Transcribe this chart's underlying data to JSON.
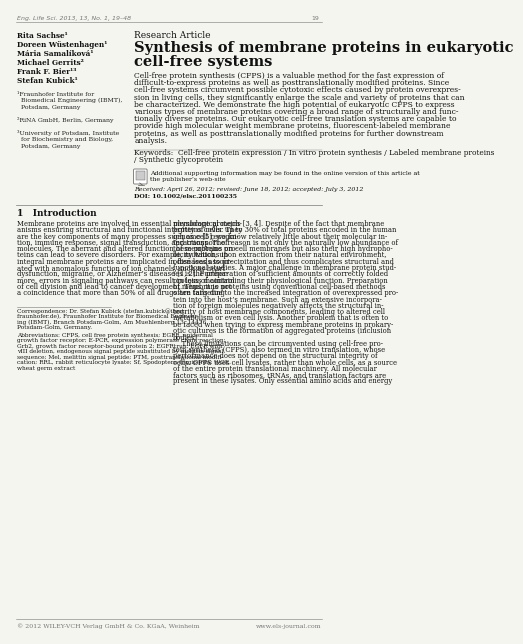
{
  "bg_color": "#f5f5f0",
  "header_line": "Eng. Life Sci. 2013, 13, No. 1, 19–48",
  "page_number": "19",
  "journal": "Eng. Life Sci.",
  "authors_left": [
    "Rita Sachse¹",
    "Doreen Wüstenhagen¹",
    "Mária Samalíková¹",
    "Michael Gerrits²",
    "Frank F. Bier¹³",
    "Stefan Kubick¹"
  ],
  "affiliations": [
    "¹Fraunhofer Institute for",
    "  Biomedical Engineering (IBMT),",
    "  Potsdam, Germany",
    "",
    "²RiNA GmbH, Berlin, Germany",
    "",
    "³University of Potsdam, Institute",
    "  for Biochemistry and Biology,",
    "  Potsdam, Germany"
  ],
  "research_article_label": "Research Article",
  "title_line1": "Synthesis of membrane proteins in eukaryotic",
  "title_line2": "cell-free systems",
  "abstract_text": "Cell-free protein synthesis (CFPS) is a valuable method for the fast expression of\ndifficult-to-express proteins as well as posttranslationally modified proteins. Since\ncell-free systems circumvent possible cytotoxic effects caused by protein overexpres-\nsion in living cells, they significantly enlarge the scale and variety of proteins that can\nbe characterized. We demonstrate the high potential of eukaryotic CFPS to express\nvarious types of membrane proteins covering a broad range of structurally and func-\ntionally diverse proteins. Our eukaryotic cell-free translation systems are capable to\nprovide high molecular weight membrane proteins, fluorescent-labeled membrane\nproteins, as well as posttranslationally modified proteins for further downstream\nanalysis.",
  "keywords_label": "Keywords:",
  "keywords_text": "Cell-free protein expression / In vitro protein synthesis / Labeled membrane proteins\n/ Synthetic glycoprotein",
  "supporting_text": "Additional supporting information may be found in the online version of this article at\nthe publisher’s web-site",
  "received_text": "Received: April 26, 2012; revised: June 18, 2012; accepted: July 3, 2012",
  "doi_text": "DOI: 10.1002/elsc.201100235",
  "section1_title": "1   Introduction",
  "intro_col1": "Membrane proteins are involved in essential physiological mech-\nanisms ensuring structural and functional integrity of cells. They\nare the key components of many processes such as cell recogni-\ntion, immune response, signal transduction, and transport of\nmolecules. The aberrant and altered function of membrane pro-\nteins can lead to severe disorders. For example, mutations in\nintegral membrane proteins are implicated in diseases associ-\nated with anomalous function of ion channels, such as heart\ndysfunction, migraine, or Alzheimer’s disease [1, 2]. Further-\nmore, errors in signaling pathways can result in loss of control\nof cell division and lead to cancer development. Thus, it is not\na coincidence that more than 50% of all drugs are targeting",
  "intro_col2": "membrane proteins [3, 4]. Despite of the fact that membrane\nproteins cover up to 30% of total proteins encoded in the human\ngenome [5], we know relatively little about their molecular in-\nteractions. The reason is not only the naturally low abundance of\nthese proteins on cell membranes but also their high hydropho-\nbicity which, upon extraction from their natural environment,\noften leads to precipitation and thus complicates structural and\nfunctional studies. A major challenge in membrane protein stud-\nies is the preparation of sufficient amounts of correctly folded\nproteins maintaining their physiological function. Preparation\nof membrane proteins using conventional cell-based methods\noften fails due to the increased integration of overexpressed pro-\ntein into the host’s membrane. Such an extensive incorpora-\ntion of foreign molecules negatively affects the structural in-\ntegrity of host membrane components, leading to altered cell\nmetabolism or even cell lysis. Another problem that is often to\nbe faced when trying to express membrane proteins in prokary-\notic cultures is the formation of aggregated proteins (inclusion\nbodies).\n    These limitations can be circumvented using cell-free pro-\ntein synthesis (CFPS), also termed in vitro translation, whose\nperformance does not depend on the structural integrity of\ncells. CFPS uses cell lysates, rather than whole cells, as a source\nof the entire protein translational machinery. All molecular\nfactors such as ribosomes, tRNAs, and translation factors are\npresent in these lysates. Only essential amino acids and energy",
  "correspondence_text": "Correspondence: Dr. Stefan Kubick (stefan.kubick@ibmt.\nfraunhofer.de), Fraunhofer Institute for Biomedical Engineer-\ning (IBMT), Branch Potsdam-Golm, Am Muehlenberg 13, 14476\nPotsdam-Golm, Germany.",
  "abbreviations_text": "Abbreviations: CFPS, cell free protein synthesis; EGFR, epidermal\ngrowth factor receptor; E-PCR, expression polymerase chain reaction;\nGrb2, growth factor receptor-bound protein 2; EGFRtrun, EGFR with\nvIII deletion, endogenous signal peptide substituted by melittin signal\nsequence; Mel, melittin signal peptide; PTM, posttranslational modifi-\ncation; RRL, rabbit reticulocyte lysate; Sf, Spodoptera frugiperda; WGE,\nwheat germ extract",
  "footer_left": "© 2012 WILEY-VCH Verlag GmbH & Co. KGaA, Weinheim",
  "footer_right": "www.els-journal.com"
}
